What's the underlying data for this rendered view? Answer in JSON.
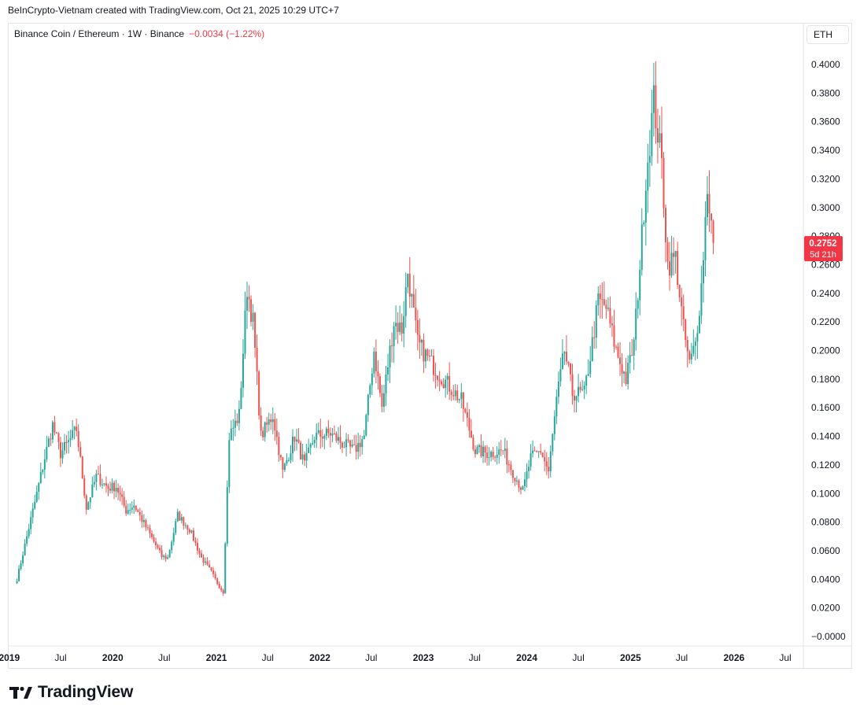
{
  "attribution": "BeInCrypto-Vietnam created with TradingView.com, Oct 21, 2025 10:29 UTC+7",
  "legend": {
    "symbol": "Binance Coin / Ethereum · 1W · Binance",
    "change": "−0.0034 (−1.22%)"
  },
  "currency_button": "ETH",
  "price_tag": {
    "price": "0.2752",
    "countdown": "5d 21h"
  },
  "brand": {
    "name": "TradingView",
    "logo_icon": "tradingview-logo-icon"
  },
  "colors": {
    "up": "#26a69a",
    "down": "#ef5350",
    "tag": "#f23645",
    "grid": "#e0e3eb"
  },
  "chart_data": {
    "type": "candlestick",
    "interval": "1W",
    "y_axis": {
      "side": "right",
      "ticks": [
        "0.4000",
        "0.3800",
        "0.3600",
        "0.3400",
        "0.3200",
        "0.3000",
        "0.2800",
        "0.2600",
        "0.2400",
        "0.2200",
        "0.2000",
        "0.1800",
        "0.1600",
        "0.1400",
        "0.1200",
        "0.1000",
        "0.0800",
        "0.0600",
        "0.0400",
        "0.0200",
        "−0.0000"
      ],
      "range": [
        -0.006,
        0.418
      ]
    },
    "x_axis": {
      "ticks": [
        {
          "label": "2019",
          "date": "2019-01-01",
          "bold": true
        },
        {
          "label": "Jul",
          "date": "2019-07-01",
          "bold": false
        },
        {
          "label": "2020",
          "date": "2020-01-01",
          "bold": true
        },
        {
          "label": "Jul",
          "date": "2020-07-01",
          "bold": false
        },
        {
          "label": "2021",
          "date": "2021-01-01",
          "bold": true
        },
        {
          "label": "Jul",
          "date": "2021-07-01",
          "bold": false
        },
        {
          "label": "2022",
          "date": "2022-01-01",
          "bold": true
        },
        {
          "label": "Jul",
          "date": "2022-07-01",
          "bold": false
        },
        {
          "label": "2023",
          "date": "2023-01-01",
          "bold": true
        },
        {
          "label": "Jul",
          "date": "2023-07-01",
          "bold": false
        },
        {
          "label": "2024",
          "date": "2024-01-01",
          "bold": true
        },
        {
          "label": "Jul",
          "date": "2024-07-01",
          "bold": false
        },
        {
          "label": "2025",
          "date": "2025-01-01",
          "bold": true
        },
        {
          "label": "Jul",
          "date": "2025-07-01",
          "bold": false
        },
        {
          "label": "2026",
          "date": "2026-01-01",
          "bold": true
        },
        {
          "label": "Jul",
          "date": "2026-07-01",
          "bold": false
        }
      ]
    },
    "first_candle_date": "2019-01-28",
    "close_path": [
      [
        "2019-01-28",
        0.04
      ],
      [
        "2019-03-04",
        0.07
      ],
      [
        "2019-04-08",
        0.1
      ],
      [
        "2019-05-06",
        0.125
      ],
      [
        "2019-06-03",
        0.148
      ],
      [
        "2019-07-01",
        0.128
      ],
      [
        "2019-08-05",
        0.138
      ],
      [
        "2019-08-26",
        0.145
      ],
      [
        "2019-09-30",
        0.09
      ],
      [
        "2019-11-04",
        0.112
      ],
      [
        "2019-12-16",
        0.104
      ],
      [
        "2020-01-13",
        0.105
      ],
      [
        "2020-02-17",
        0.088
      ],
      [
        "2020-03-16",
        0.092
      ],
      [
        "2020-05-04",
        0.074
      ],
      [
        "2020-06-22",
        0.056
      ],
      [
        "2020-07-13",
        0.055
      ],
      [
        "2020-08-17",
        0.085
      ],
      [
        "2020-09-28",
        0.075
      ],
      [
        "2020-11-09",
        0.055
      ],
      [
        "2020-12-14",
        0.045
      ],
      [
        "2021-01-11",
        0.035
      ],
      [
        "2021-01-25",
        0.031
      ],
      [
        "2021-02-15",
        0.14
      ],
      [
        "2021-03-22",
        0.155
      ],
      [
        "2021-04-19",
        0.244
      ],
      [
        "2021-05-10",
        0.22
      ],
      [
        "2021-06-07",
        0.14
      ],
      [
        "2021-07-19",
        0.155
      ],
      [
        "2021-08-23",
        0.115
      ],
      [
        "2021-10-04",
        0.14
      ],
      [
        "2021-11-08",
        0.12
      ],
      [
        "2021-12-13",
        0.14
      ],
      [
        "2022-02-07",
        0.142
      ],
      [
        "2022-03-21",
        0.135
      ],
      [
        "2022-05-02",
        0.13
      ],
      [
        "2022-06-06",
        0.14
      ],
      [
        "2022-07-11",
        0.2
      ],
      [
        "2022-08-08",
        0.16
      ],
      [
        "2022-09-19",
        0.22
      ],
      [
        "2022-10-17",
        0.215
      ],
      [
        "2022-11-07",
        0.255
      ],
      [
        "2022-12-12",
        0.205
      ],
      [
        "2023-01-16",
        0.195
      ],
      [
        "2023-02-20",
        0.185
      ],
      [
        "2023-04-03",
        0.175
      ],
      [
        "2023-05-15",
        0.165
      ],
      [
        "2023-07-03",
        0.13
      ],
      [
        "2023-08-21",
        0.128
      ],
      [
        "2023-10-09",
        0.13
      ],
      [
        "2023-11-13",
        0.115
      ],
      [
        "2023-12-18",
        0.102
      ],
      [
        "2024-01-15",
        0.125
      ],
      [
        "2024-02-19",
        0.13
      ],
      [
        "2024-03-18",
        0.115
      ],
      [
        "2024-04-15",
        0.165
      ],
      [
        "2024-05-13",
        0.2
      ],
      [
        "2024-06-10",
        0.17
      ],
      [
        "2024-07-22",
        0.17
      ],
      [
        "2024-08-19",
        0.205
      ],
      [
        "2024-09-09",
        0.235
      ],
      [
        "2024-10-07",
        0.23
      ],
      [
        "2024-11-11",
        0.2
      ],
      [
        "2024-12-16",
        0.18
      ],
      [
        "2025-01-13",
        0.205
      ],
      [
        "2025-02-03",
        0.26
      ],
      [
        "2025-02-24",
        0.32
      ],
      [
        "2025-03-24",
        0.375
      ],
      [
        "2025-04-21",
        0.33
      ],
      [
        "2025-05-12",
        0.26
      ],
      [
        "2025-06-09",
        0.265
      ],
      [
        "2025-07-07",
        0.215
      ],
      [
        "2025-07-28",
        0.19
      ],
      [
        "2025-08-18",
        0.205
      ],
      [
        "2025-09-08",
        0.245
      ],
      [
        "2025-09-29",
        0.315
      ],
      [
        "2025-10-20",
        0.2752
      ]
    ]
  }
}
